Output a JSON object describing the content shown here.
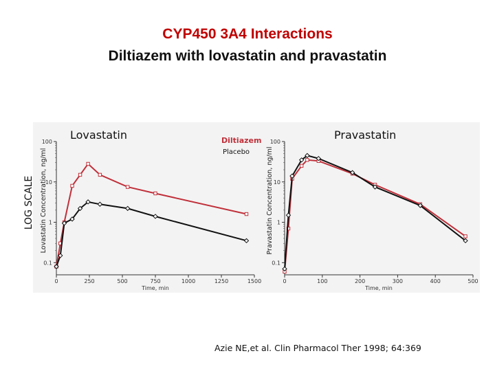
{
  "title": "CYP450 3A4 Interactions",
  "subtitle": "Diltiazem with lovastatin and pravastatin",
  "side_label": "LOG SCALE",
  "citation": "Azie NE,et al. Clin Pharmacol Ther 1998; 64:369",
  "colors": {
    "title": "#c00000",
    "diltiazem": "#c0303a",
    "placebo": "#111111"
  },
  "legend": {
    "diltiazem": "Diltiazem",
    "placebo": "Placebo"
  },
  "chart_data": [
    {
      "type": "line",
      "title": "Lovastatin",
      "xlabel": "Time, min",
      "ylabel": "Lovastatin Concentration, ng/ml",
      "xlim": [
        0,
        1500
      ],
      "ylim": [
        0.05,
        100
      ],
      "yscale": "log",
      "xticks": [
        0,
        250,
        500,
        750,
        1000,
        1250,
        1500
      ],
      "yticks": [
        0.1,
        1,
        10,
        100
      ],
      "ytick_labels": [
        "0.1",
        "1",
        "10",
        "100"
      ],
      "series": [
        {
          "name": "Diltiazem",
          "x": [
            0,
            30,
            60,
            120,
            180,
            240,
            330,
            540,
            750,
            1440
          ],
          "y": [
            0.08,
            0.3,
            1.0,
            8,
            15,
            28,
            15,
            7.5,
            5.2,
            1.6
          ]
        },
        {
          "name": "Placebo",
          "x": [
            0,
            30,
            60,
            120,
            180,
            240,
            330,
            540,
            750,
            1440
          ],
          "y": [
            0.08,
            0.15,
            0.95,
            1.2,
            2.2,
            3.2,
            2.8,
            2.2,
            1.4,
            0.35
          ]
        }
      ]
    },
    {
      "type": "line",
      "title": "Pravastatin",
      "xlabel": "Time, min",
      "ylabel": "Pravastatin Concentration, ng/ml",
      "xlim": [
        0,
        500
      ],
      "ylim": [
        0.05,
        100
      ],
      "yscale": "log",
      "xticks": [
        0,
        100,
        200,
        300,
        400,
        500
      ],
      "yticks": [
        0.1,
        1,
        10,
        100
      ],
      "ytick_labels": [
        "0.1",
        "1",
        "10",
        "100"
      ],
      "series": [
        {
          "name": "Diltiazem",
          "x": [
            0,
            10,
            20,
            45,
            60,
            90,
            180,
            240,
            360,
            480
          ],
          "y": [
            0.06,
            0.7,
            12,
            25,
            35,
            33,
            16,
            8.5,
            2.8,
            0.45
          ]
        },
        {
          "name": "Placebo",
          "x": [
            0,
            10,
            20,
            45,
            60,
            90,
            180,
            240,
            360,
            480
          ],
          "y": [
            0.07,
            1.5,
            14,
            35,
            45,
            38,
            17,
            7.5,
            2.6,
            0.35
          ]
        }
      ]
    }
  ]
}
